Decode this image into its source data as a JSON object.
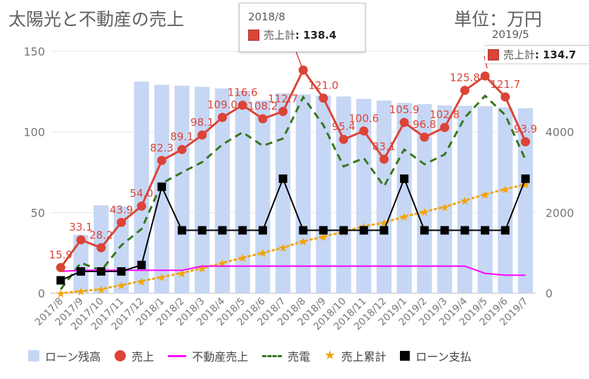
{
  "title": "太陽光と不動産の売上",
  "unit_label": "単位：万円",
  "tooltips": [
    {
      "date": "2018/8",
      "series": "売上計",
      "value": "138.4"
    },
    {
      "date": "2019/5",
      "series": "売上計",
      "value": "134.7"
    }
  ],
  "colors": {
    "loan_balance": "#c6d7f5",
    "sales": "#db4437",
    "realestate": "#ff00ff",
    "power": "#38761d",
    "cumulative": "#f4a300",
    "loan_payment": "#000000",
    "grid": "#e6e6e6",
    "axis_text": "#777777"
  },
  "chart_data": {
    "type": "bar",
    "title": "太陽光と不動産の売上",
    "categories": [
      "2017/8",
      "2017/9",
      "2017/10",
      "2017/11",
      "2017/12",
      "2018/1",
      "2018/2",
      "2018/3",
      "2018/4",
      "2018/5",
      "2018/6",
      "2018/7",
      "2018/8",
      "2018/9",
      "2018/10",
      "2018/11",
      "2018/12",
      "2019/1",
      "2019/2",
      "2019/3",
      "2019/4",
      "2019/5",
      "2019/6",
      "2019/7"
    ],
    "y_left": {
      "ylim": [
        0,
        150
      ],
      "ticks": [
        0,
        50,
        100,
        150
      ]
    },
    "y_right": {
      "ylim": [
        0,
        6000
      ],
      "ticks": [
        0,
        2000,
        4000
      ]
    },
    "grid": true,
    "legend_position": "bottom",
    "series": [
      {
        "name": "ローン残高",
        "type": "bar",
        "axis": "right",
        "marker": "square",
        "values": [
          0,
          1450,
          2180,
          2150,
          5250,
          5170,
          5150,
          5120,
          5080,
          5020,
          4780,
          4960,
          4930,
          4900,
          4880,
          4820,
          4780,
          4720,
          4690,
          4660,
          4650,
          4640,
          4610,
          4590
        ]
      },
      {
        "name": "売上",
        "type": "line",
        "axis": "left",
        "marker": "circle",
        "values": [
          15.9,
          33.1,
          28.2,
          43.9,
          54.0,
          82.3,
          89.1,
          98.1,
          109.0,
          116.6,
          108.2,
          112.7,
          138.4,
          121.0,
          95.4,
          100.6,
          83.1,
          105.9,
          96.8,
          102.8,
          125.8,
          134.7,
          121.7,
          93.9
        ],
        "labels": [
          "15.9",
          "33.1",
          "28.2",
          "43.9",
          "54.0",
          "82.3",
          "89.1",
          "98.1",
          "109.0",
          "116.6",
          "108.2",
          "112.7",
          "",
          "121.0",
          "95.4",
          "100.6",
          "83.1",
          "105.9",
          "96.8",
          "102.8",
          "125.8",
          "",
          "121.7",
          "93.9"
        ]
      },
      {
        "name": "不動産売上",
        "type": "line",
        "axis": "left",
        "marker": "line",
        "values": [
          13.5,
          14.2,
          14.2,
          14.2,
          14.2,
          14.2,
          14.2,
          16.8,
          16.8,
          16.8,
          16.8,
          16.8,
          16.8,
          16.8,
          16.8,
          16.8,
          16.8,
          16.8,
          16.8,
          16.8,
          16.8,
          12.3,
          11.2,
          11.2
        ]
      },
      {
        "name": "売電",
        "type": "line",
        "axis": "left",
        "marker": "dash",
        "values": [
          2.4,
          18.9,
          14.0,
          29.7,
          39.8,
          68.1,
          74.9,
          81.3,
          92.2,
          99.8,
          91.4,
          95.9,
          121.6,
          104.2,
          78.6,
          83.8,
          66.3,
          89.1,
          80.0,
          86.0,
          109.0,
          122.4,
          110.5,
          82.7
        ]
      },
      {
        "name": "売上累計",
        "type": "line",
        "axis": "right",
        "marker": "star",
        "values": [
          0,
          50,
          100,
          200,
          300,
          400,
          500,
          620,
          750,
          880,
          1000,
          1130,
          1290,
          1400,
          1530,
          1660,
          1750,
          1900,
          2020,
          2140,
          2300,
          2450,
          2580,
          2700
        ]
      },
      {
        "name": "ローン支払",
        "type": "line",
        "axis": "left",
        "marker": "square",
        "values": [
          8,
          13.5,
          13.5,
          13.5,
          17.5,
          66,
          39,
          39,
          39,
          39,
          39,
          71,
          39,
          39,
          39,
          39,
          39,
          71,
          39,
          39,
          39,
          39,
          39,
          71
        ]
      }
    ]
  }
}
